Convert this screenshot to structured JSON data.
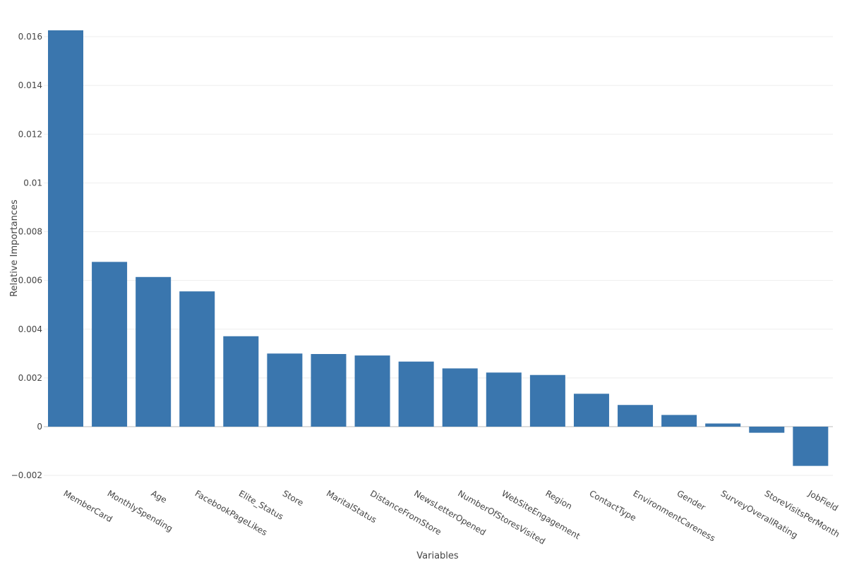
{
  "chart_data": {
    "type": "bar",
    "xlabel": "Variables",
    "ylabel": "Relative Importances",
    "categories": [
      "MemberCard",
      "MonthlySpending",
      "Age",
      "FacebookPageLikes",
      "Elite_Status",
      "Store",
      "MaritalStatus",
      "DistanceFromStore",
      "NewsLetterOpened",
      "NumberOfStoresVisited",
      "WebSiteEngagement",
      "Region",
      "ContactType",
      "EnvironmentCareness",
      "Gender",
      "SurveyOverallRating",
      "StoreVisitsPerMonth",
      "JobField"
    ],
    "values": [
      0.01626,
      0.00676,
      0.00614,
      0.00555,
      0.00371,
      0.003,
      0.00298,
      0.00292,
      0.00267,
      0.00239,
      0.00222,
      0.00212,
      0.00135,
      0.00089,
      0.00048,
      0.00013,
      -0.00025,
      -0.00161
    ],
    "ylim": [
      -0.0022,
      0.0165
    ],
    "yticks": [
      -0.002,
      0,
      0.002,
      0.004,
      0.006,
      0.008,
      0.01,
      0.012,
      0.014,
      0.016
    ],
    "ytick_labels": [
      "−0.002",
      "0",
      "0.002",
      "0.004",
      "0.006",
      "0.008",
      "0.01",
      "0.012",
      "0.014",
      "0.016"
    ],
    "grid": true,
    "bar_color": "#3a76ae",
    "grid_color": "#eeeeee",
    "zero_line_color": "#dddddd"
  }
}
